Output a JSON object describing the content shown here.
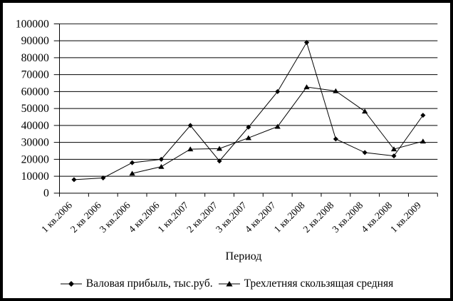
{
  "chart_data": {
    "type": "line",
    "title": "",
    "xlabel": "Период",
    "ylabel": "",
    "ylim": [
      0,
      100000
    ],
    "ytick_step": 10000,
    "yticks": [
      0,
      10000,
      20000,
      30000,
      40000,
      50000,
      60000,
      70000,
      80000,
      90000,
      100000
    ],
    "grid": "horizontal",
    "legend_position": "bottom",
    "categories": [
      "1 кв.2006",
      "2 кв 2006",
      "3 кв.2006",
      "4 кв.2006",
      "1 кв.2007",
      "2 кв.2007",
      "3 кв.2007",
      "4 кв.2007",
      "1 кв.2008",
      "2 кв.2008",
      "3 кв.2008",
      "4 кв.2008",
      "1 кв.2009"
    ],
    "series": [
      {
        "name": "Валовая прибыль, тыс.руб.",
        "marker": "diamond",
        "color": "#000000",
        "values": [
          8000,
          9000,
          18000,
          20000,
          40000,
          19000,
          39000,
          60000,
          89000,
          32000,
          24000,
          22000,
          46000
        ]
      },
      {
        "name": "Трехлетняя скользящая средняя",
        "marker": "triangle",
        "color": "#000000",
        "values": [
          null,
          null,
          11667,
          15667,
          26000,
          26333,
          32667,
          39333,
          62667,
          60333,
          48333,
          26000,
          30667
        ]
      }
    ]
  },
  "colors": {
    "line": "#000000",
    "background": "#ffffff",
    "frame_border": "#000000"
  }
}
